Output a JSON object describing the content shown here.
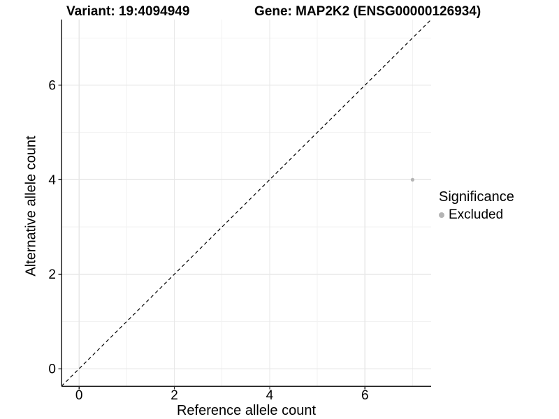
{
  "chart_data": {
    "type": "scatter",
    "titles": {
      "left": "Variant: 19:4094949",
      "right": "Gene: MAP2K2 (ENSG00000126934)"
    },
    "xlabel": "Reference allele count",
    "ylabel": "Alternative allele count",
    "xlim": [
      -0.37,
      7.39
    ],
    "ylim": [
      -0.37,
      7.39
    ],
    "xticks": [
      0,
      2,
      4,
      6
    ],
    "yticks": [
      0,
      2,
      4,
      6
    ],
    "xminor": [
      1,
      3,
      5,
      7
    ],
    "yminor": [
      1,
      3,
      5,
      7
    ],
    "grid": true,
    "reference_line": {
      "kind": "identity",
      "style": "dashed",
      "color": "#000000"
    },
    "series": [
      {
        "name": "Excluded",
        "color": "#b4b4b4",
        "points": [
          {
            "x": 7,
            "y": 4
          }
        ]
      }
    ],
    "legend": {
      "title": "Significance",
      "position": "right",
      "items": [
        {
          "label": "Excluded",
          "color": "#b4b4b4"
        }
      ]
    },
    "colors": {
      "background": "#ffffff",
      "grid_major": "#e7e7e7",
      "grid_minor": "#f2f2f2",
      "axis_line": "#1f1f1f",
      "tick_text": "#000000"
    }
  }
}
